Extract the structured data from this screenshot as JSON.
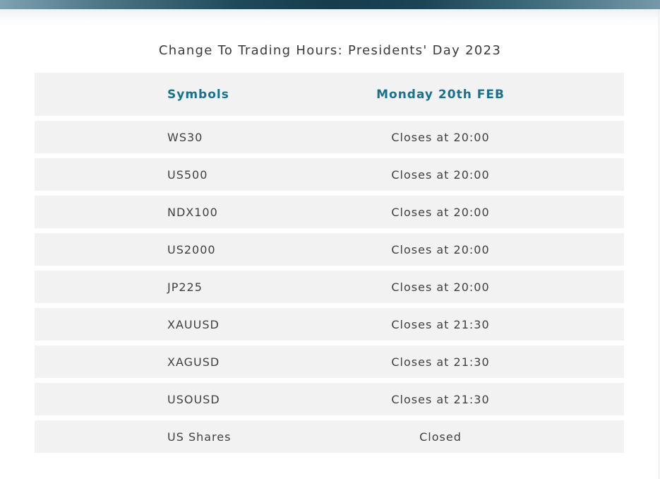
{
  "page": {
    "title": "Change To Trading Hours: Presidents' Day 2023"
  },
  "theme": {
    "accent_header_text": "#17718f",
    "row_background": "#f2f2f2",
    "body_text": "#404040",
    "title_text": "#3a3a3a",
    "topbar_gradient_light": "#7ea3b1",
    "topbar_gradient_dark": "#143d4d"
  },
  "table": {
    "columns": [
      {
        "label": "Symbols"
      },
      {
        "label": "Monday 20th FEB"
      }
    ],
    "rows": [
      {
        "symbol": "WS30",
        "hours": "Closes at 20:00"
      },
      {
        "symbol": "US500",
        "hours": "Closes at 20:00"
      },
      {
        "symbol": "NDX100",
        "hours": "Closes at 20:00"
      },
      {
        "symbol": "US2000",
        "hours": "Closes at 20:00"
      },
      {
        "symbol": "JP225",
        "hours": "Closes at 20:00"
      },
      {
        "symbol": "XAUUSD",
        "hours": "Closes at 21:30"
      },
      {
        "symbol": "XAGUSD",
        "hours": "Closes at 21:30"
      },
      {
        "symbol": "USOUSD",
        "hours": "Closes at 21:30"
      },
      {
        "symbol": "US Shares",
        "hours": "Closed"
      }
    ]
  }
}
